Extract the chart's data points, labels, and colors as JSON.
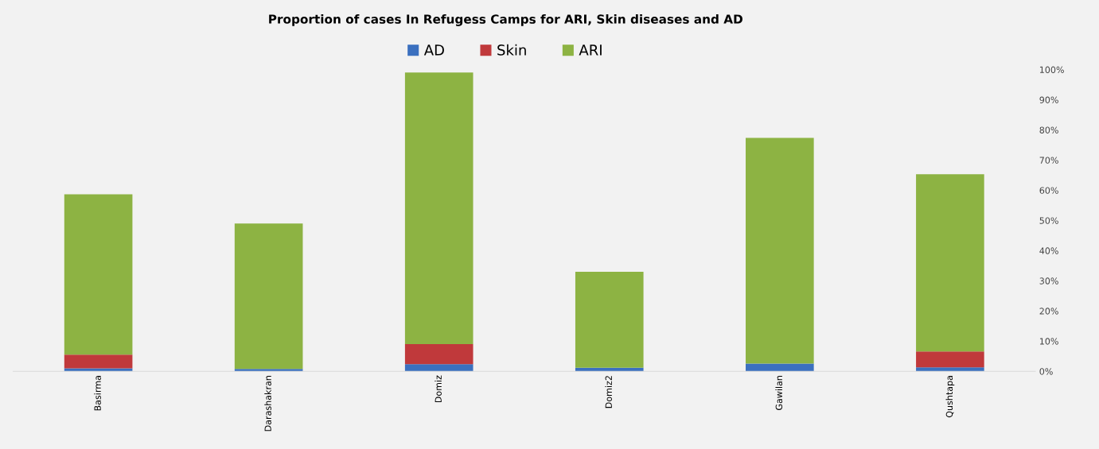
{
  "chart_data": {
    "type": "bar",
    "stacked": true,
    "title": "Proportion of cases In Refugess Camps for ARI, Skin diseases and AD",
    "categories": [
      "Basirma",
      "Darashakran",
      "Domiz",
      "Domiz2",
      "Gawilan",
      "Qushtapa"
    ],
    "series": [
      {
        "name": "AD",
        "color": "#3b70bf",
        "values": [
          1.0,
          0.8,
          2.4,
          1.2,
          2.6,
          1.3
        ]
      },
      {
        "name": "Skin",
        "color": "#c0393b",
        "values": [
          4.5,
          0,
          6.6,
          0,
          0,
          5.3
        ]
      },
      {
        "name": "ARI",
        "color": "#8db343",
        "values": [
          53.2,
          48.2,
          90.0,
          31.8,
          74.8,
          58.7
        ]
      }
    ],
    "ylim": [
      0,
      100
    ],
    "yticks": [
      {
        "value": 0,
        "label": "0%"
      },
      {
        "value": 10,
        "label": "10%"
      },
      {
        "value": 20,
        "label": "20%"
      },
      {
        "value": 30,
        "label": "30%"
      },
      {
        "value": 40,
        "label": "40%"
      },
      {
        "value": 50,
        "label": "50%"
      },
      {
        "value": 60,
        "label": "60%"
      },
      {
        "value": 70,
        "label": "70%"
      },
      {
        "value": 80,
        "label": "80%"
      },
      {
        "value": 90,
        "label": "90%"
      },
      {
        "value": 100,
        "label": "100%"
      }
    ],
    "grid": false,
    "legend": "top"
  }
}
